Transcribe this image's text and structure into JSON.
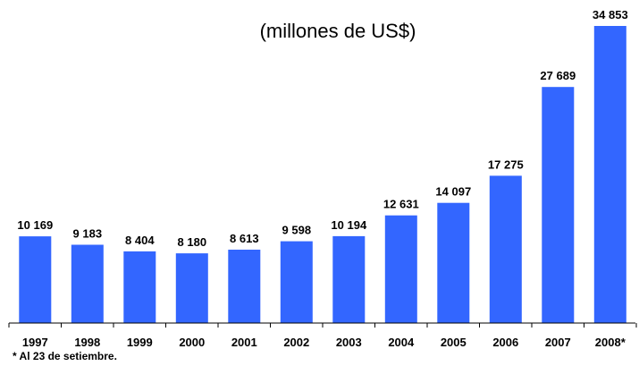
{
  "chart_data": {
    "type": "bar",
    "title": "(millones de US$)",
    "categories": [
      "1997",
      "1998",
      "1999",
      "2000",
      "2001",
      "2002",
      "2003",
      "2004",
      "2005",
      "2006",
      "2007",
      "2008*"
    ],
    "values": [
      10169,
      9183,
      8404,
      8180,
      8613,
      9598,
      10194,
      12631,
      14097,
      17275,
      27689,
      34853
    ],
    "value_labels": [
      "10 169",
      "9 183",
      "8 404",
      "8 180",
      "8 613",
      "9 598",
      "10 194",
      "12 631",
      "14 097",
      "17 275",
      "27 689",
      "34 853"
    ],
    "xlabel": "",
    "ylabel": "",
    "ylim": [
      0,
      36000
    ],
    "grid": false,
    "bar_color": "#3366FF"
  },
  "footnote": "* Al 23 de setiembre."
}
